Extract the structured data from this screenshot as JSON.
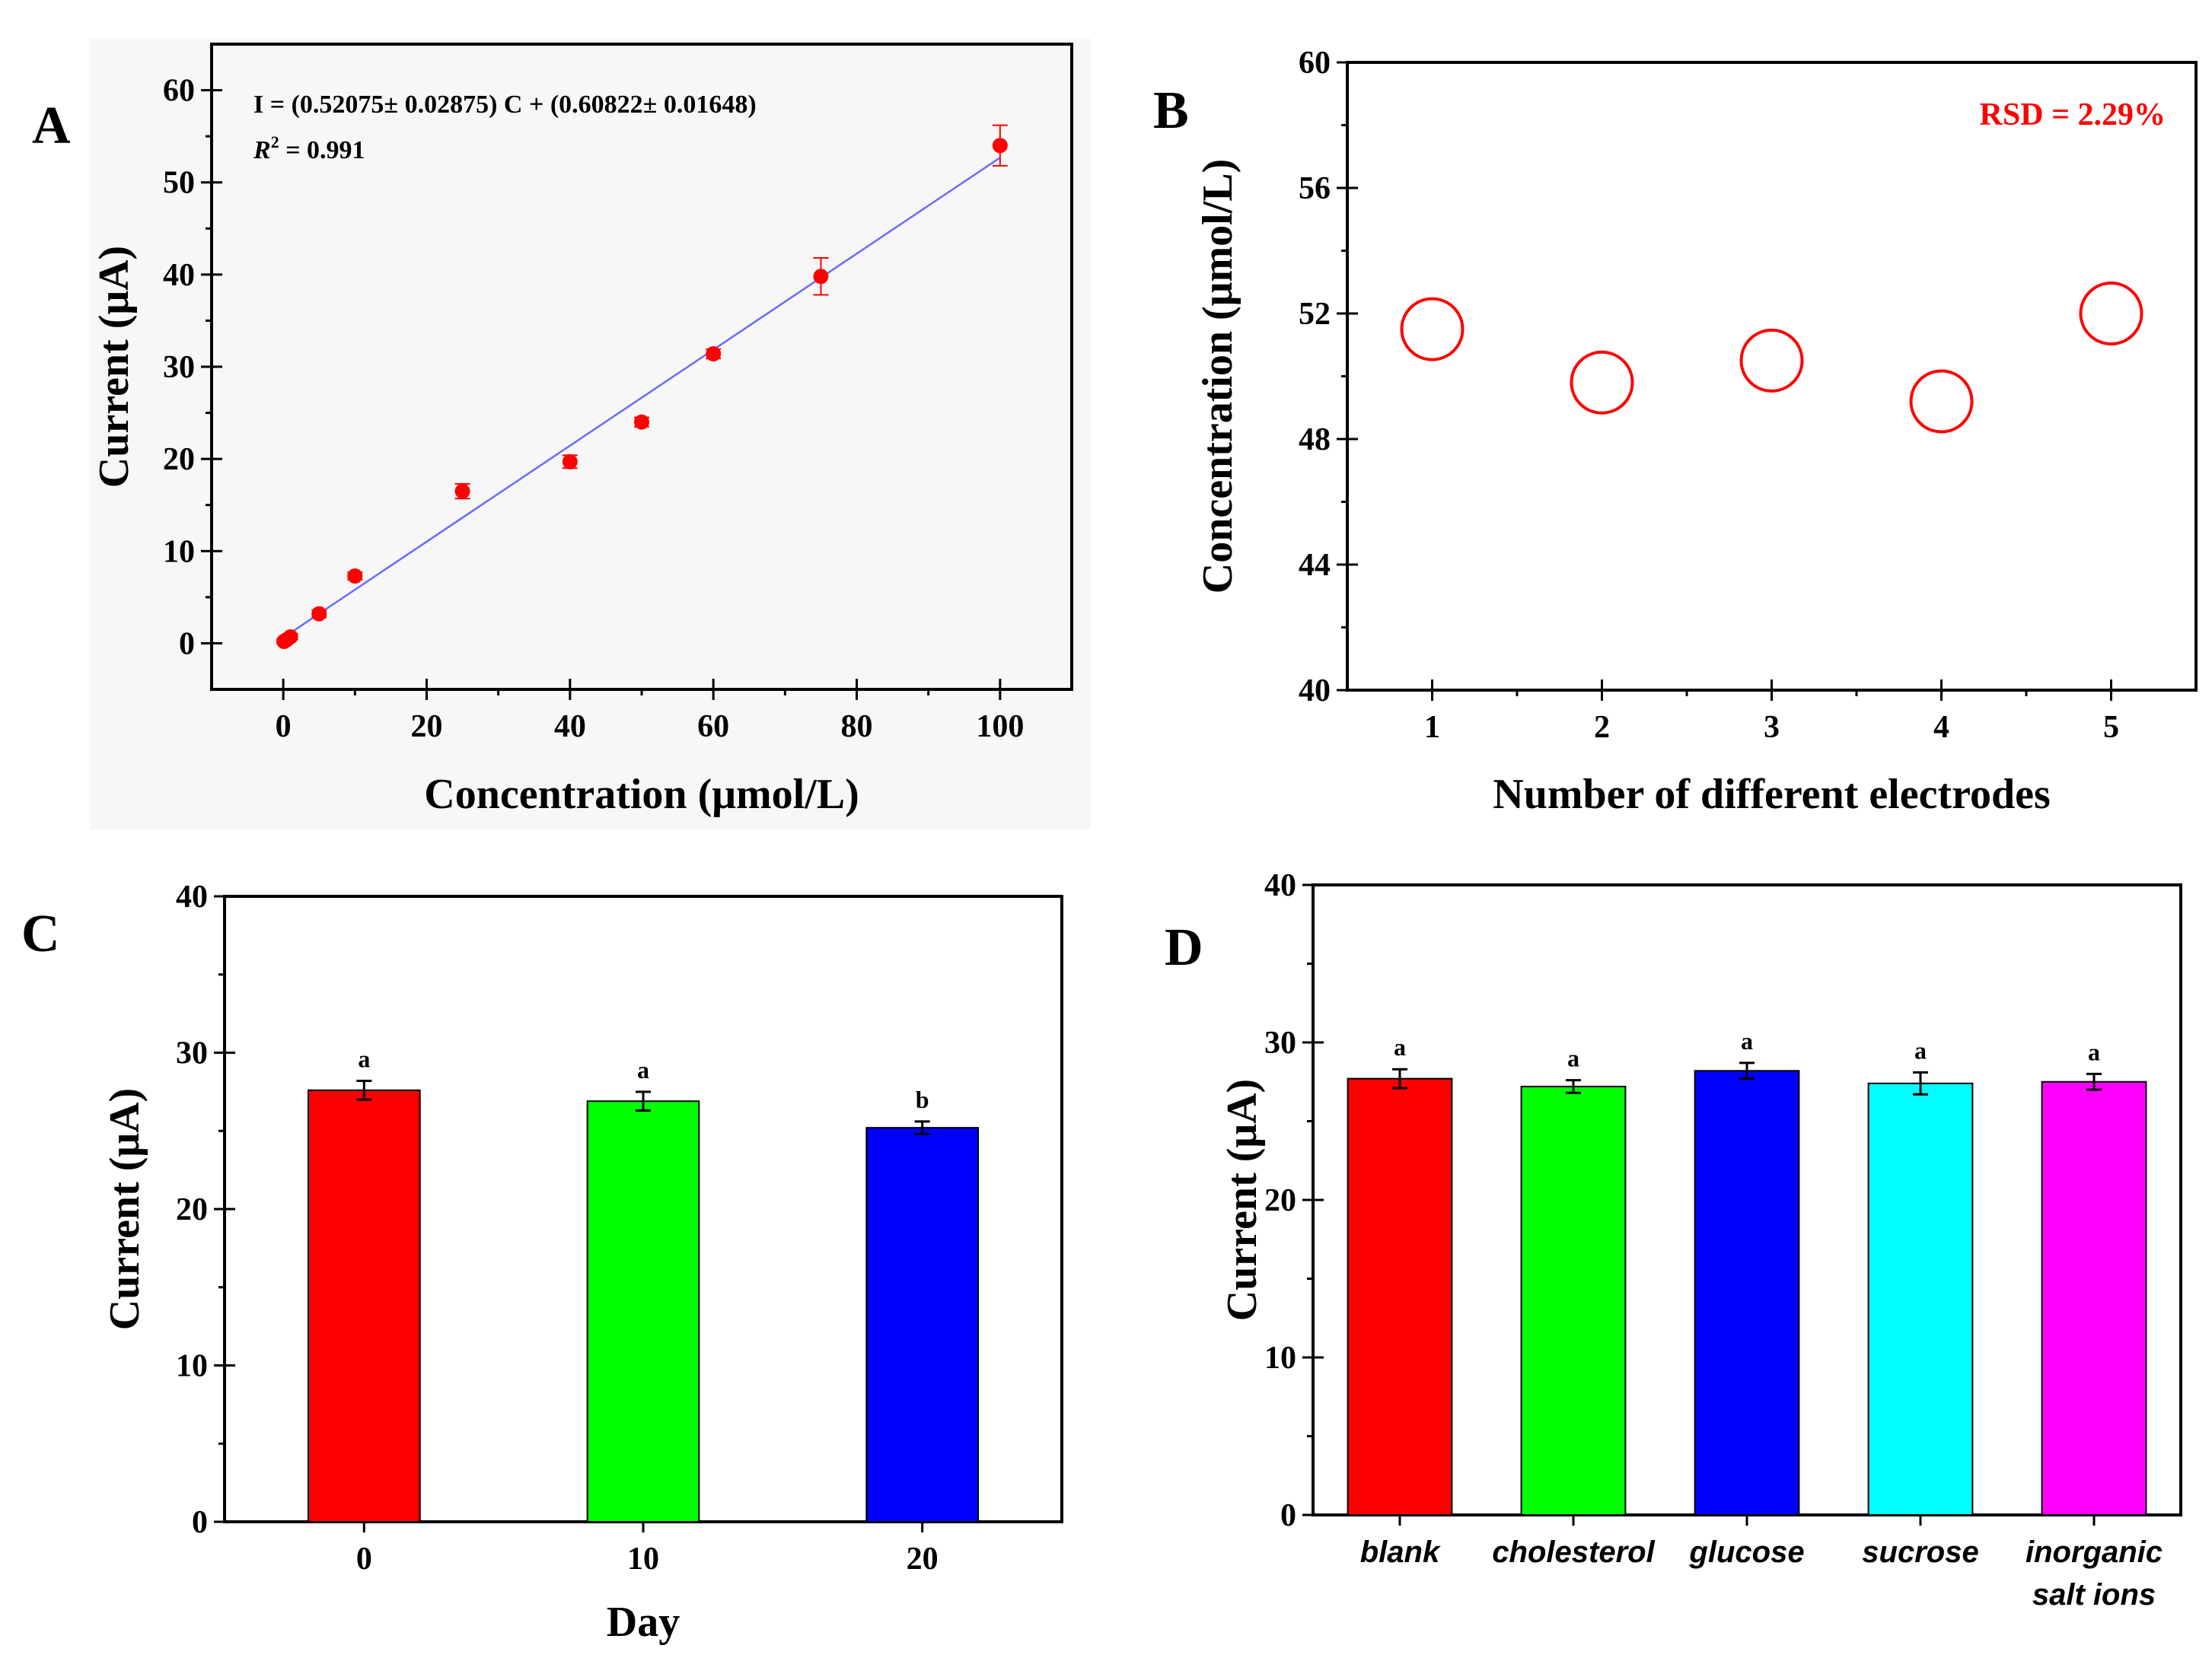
{
  "chart_data": [
    {
      "panel": "A",
      "type": "scatter",
      "xlabel": "Concentration (μmol/L)",
      "ylabel": "Current (μA)",
      "xlim": [
        -10,
        110
      ],
      "ylim": [
        -5,
        65
      ],
      "xticks": [
        0,
        20,
        40,
        60,
        80,
        100
      ],
      "yticks": [
        0,
        10,
        20,
        30,
        40,
        50,
        60
      ],
      "points": [
        {
          "x": 0.1,
          "y": 0.2,
          "err": 0.2
        },
        {
          "x": 0.5,
          "y": 0.4,
          "err": 0.3
        },
        {
          "x": 1,
          "y": 0.7,
          "err": 0.3
        },
        {
          "x": 5,
          "y": 3.2,
          "err": 0.4
        },
        {
          "x": 10,
          "y": 7.3,
          "err": 0.4
        },
        {
          "x": 25,
          "y": 16.5,
          "err": 0.8
        },
        {
          "x": 40,
          "y": 19.7,
          "err": 0.7
        },
        {
          "x": 50,
          "y": 24.0,
          "err": 0.5
        },
        {
          "x": 60,
          "y": 31.4,
          "err": 0.5
        },
        {
          "x": 75,
          "y": 39.8,
          "err": 2.0
        },
        {
          "x": 100,
          "y": 54.0,
          "err": 2.2
        }
      ],
      "fit": {
        "slope": 0.52075,
        "intercept": 0.60822,
        "x_range": [
          0,
          100
        ]
      },
      "annotations": {
        "equation": "I = (0.52075±  0.02875) C + (0.60822±  0.01648)",
        "r2_label": "R",
        "r2_sup": "2",
        "r2_value": " = 0.991"
      },
      "colors": {
        "points": "#ff0000",
        "fit_line": "#6b6bff"
      }
    },
    {
      "panel": "B",
      "type": "scatter",
      "xlabel": "Number of different electrodes",
      "ylabel": "Concentration (μmol/L)",
      "xlim": [
        0.5,
        5.5
      ],
      "ylim": [
        40,
        60
      ],
      "xticks": [
        1,
        2,
        3,
        4,
        5
      ],
      "yticks": [
        40,
        44,
        48,
        52,
        56,
        60
      ],
      "points": [
        {
          "x": 1,
          "y": 51.5
        },
        {
          "x": 2,
          "y": 49.8
        },
        {
          "x": 3,
          "y": 50.5
        },
        {
          "x": 4,
          "y": 49.2
        },
        {
          "x": 5,
          "y": 52.0
        }
      ],
      "annotation": "RSD = 2.29%",
      "colors": {
        "points": "#ff0000",
        "annotation": "#ff0000"
      }
    },
    {
      "panel": "C",
      "type": "bar",
      "xlabel": "Day",
      "ylabel": "Current (μA)",
      "ylim": [
        0,
        40
      ],
      "yticks": [
        0,
        10,
        20,
        30,
        40
      ],
      "categories": [
        "0",
        "10",
        "20"
      ],
      "values": [
        27.6,
        26.9,
        25.2
      ],
      "errors": [
        0.6,
        0.6,
        0.4
      ],
      "significance": [
        "a",
        "a",
        "b"
      ],
      "colors": [
        "#ff0000",
        "#00ff00",
        "#0000ff"
      ]
    },
    {
      "panel": "D",
      "type": "bar",
      "xlabel": "",
      "ylabel": "Current (μA)",
      "ylim": [
        0,
        40
      ],
      "yticks": [
        0,
        10,
        20,
        30,
        40
      ],
      "categories": [
        "blank",
        "cholesterol",
        "glucose",
        "sucrose",
        "inorganic salt ions"
      ],
      "category_lines": [
        [
          "blank"
        ],
        [
          "cholesterol"
        ],
        [
          "glucose"
        ],
        [
          "sucrose"
        ],
        [
          "inorganic",
          "salt ions"
        ]
      ],
      "values": [
        27.7,
        27.2,
        28.2,
        27.4,
        27.5
      ],
      "errors": [
        0.6,
        0.4,
        0.5,
        0.7,
        0.5
      ],
      "significance": [
        "a",
        "a",
        "a",
        "a",
        "a"
      ],
      "colors": [
        "#ff0000",
        "#00ff00",
        "#0000ff",
        "#00ffff",
        "#ff00ff"
      ]
    }
  ]
}
